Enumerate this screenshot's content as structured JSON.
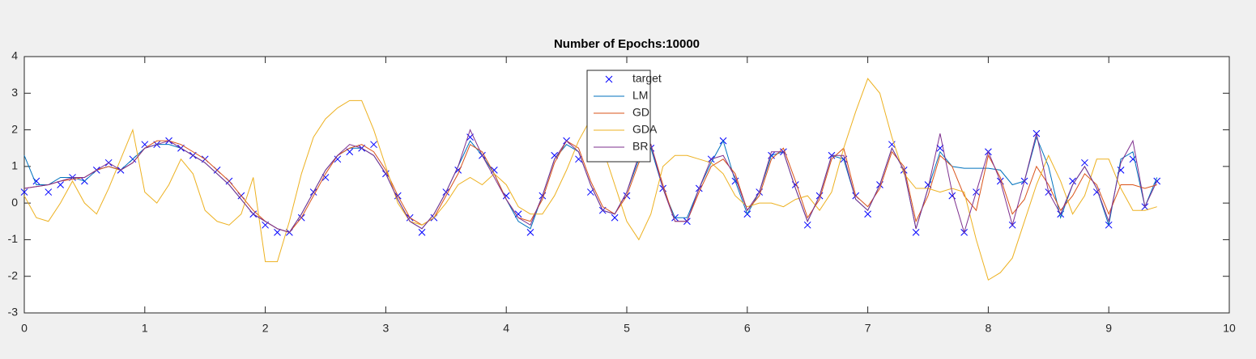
{
  "chart_data": {
    "type": "line",
    "title": "Number of Epochs:10000",
    "x": [
      0,
      0.1,
      0.2,
      0.3,
      0.4,
      0.5,
      0.6,
      0.7,
      0.8,
      0.9,
      1,
      1.1,
      1.2,
      1.3,
      1.4,
      1.5,
      1.6,
      1.7,
      1.8,
      1.9,
      2,
      2.1,
      2.2,
      2.3,
      2.4,
      2.5,
      2.6,
      2.7,
      2.8,
      2.9,
      3,
      3.1,
      3.2,
      3.3,
      3.4,
      3.5,
      3.6,
      3.7,
      3.8,
      3.9,
      4,
      4.1,
      4.2,
      4.3,
      4.4,
      4.5,
      4.6,
      4.7,
      4.8,
      4.9,
      5,
      5.1,
      5.2,
      5.3,
      5.4,
      5.5,
      5.6,
      5.7,
      5.8,
      5.9,
      6,
      6.1,
      6.2,
      6.3,
      6.4,
      6.5,
      6.6,
      6.7,
      6.8,
      6.9,
      7,
      7.1,
      7.2,
      7.3,
      7.4,
      7.5,
      7.6,
      7.7,
      7.8,
      7.9,
      8,
      8.1,
      8.2,
      8.3,
      8.4,
      8.5,
      8.6,
      8.7,
      8.8,
      8.9,
      9,
      9.1,
      9.2,
      9.3,
      9.4
    ],
    "series": [
      {
        "name": "target",
        "color": "#0000ff",
        "marker": "x",
        "values": [
          0.3,
          0.6,
          0.3,
          0.5,
          0.7,
          0.6,
          0.9,
          1.1,
          0.9,
          1.2,
          1.6,
          1.6,
          1.7,
          1.5,
          1.3,
          1.2,
          0.9,
          0.6,
          0.2,
          -0.3,
          -0.6,
          -0.8,
          -0.8,
          -0.4,
          0.3,
          0.7,
          1.2,
          1.4,
          1.5,
          1.6,
          0.8,
          0.2,
          -0.4,
          -0.8,
          -0.4,
          0.3,
          0.9,
          1.8,
          1.3,
          0.9,
          0.2,
          -0.3,
          -0.8,
          0.2,
          1.3,
          1.7,
          1.2,
          0.3,
          -0.2,
          -0.4,
          0.2,
          1.3,
          1.5,
          0.4,
          -0.4,
          -0.5,
          0.4,
          1.2,
          1.7,
          0.6,
          -0.3,
          0.3,
          1.3,
          1.4,
          0.5,
          -0.6,
          0.2,
          1.3,
          1.2,
          0.2,
          -0.3,
          0.5,
          1.6,
          0.9,
          -0.8,
          0.5,
          1.5,
          0.2,
          -0.8,
          0.3,
          1.4,
          0.6,
          -0.6,
          0.6,
          1.9,
          0.3,
          -0.3,
          0.6,
          1.1,
          0.3,
          -0.6,
          0.9,
          1.2,
          -0.1,
          0.6
        ]
      },
      {
        "name": "LM",
        "color": "#0072bd",
        "values": [
          1.3,
          0.5,
          0.5,
          0.7,
          0.7,
          0.6,
          0.9,
          1.0,
          0.9,
          1.2,
          1.5,
          1.6,
          1.6,
          1.5,
          1.3,
          1.1,
          0.8,
          0.5,
          0.1,
          -0.3,
          -0.5,
          -0.7,
          -0.8,
          -0.3,
          0.3,
          0.9,
          1.3,
          1.5,
          1.5,
          1.3,
          0.8,
          0.1,
          -0.5,
          -0.7,
          -0.3,
          0.3,
          1.0,
          1.7,
          1.3,
          0.8,
          0.1,
          -0.5,
          -0.7,
          0.2,
          1.2,
          1.6,
          1.4,
          0.5,
          -0.2,
          -0.3,
          0.3,
          1.2,
          1.5,
          0.4,
          -0.4,
          -0.4,
          0.4,
          1.1,
          1.7,
          0.6,
          -0.3,
          0.3,
          1.3,
          1.4,
          0.4,
          -0.5,
          0.2,
          1.3,
          1.2,
          0.1,
          -0.2,
          0.5,
          1.5,
          0.9,
          -0.7,
          0.4,
          1.4,
          1.0,
          0.95,
          0.95,
          0.95,
          0.9,
          0.5,
          0.6,
          1.8,
          1.0,
          -0.4,
          0.5,
          1.0,
          0.4,
          -0.6,
          1.2,
          1.4,
          -0.1,
          0.7
        ]
      },
      {
        "name": "GD",
        "color": "#d95319",
        "values": [
          0.4,
          0.45,
          0.5,
          0.6,
          0.65,
          0.7,
          0.9,
          1.0,
          0.9,
          1.1,
          1.5,
          1.7,
          1.7,
          1.6,
          1.4,
          1.2,
          0.9,
          0.6,
          0.2,
          -0.2,
          -0.5,
          -0.7,
          -0.8,
          -0.4,
          0.2,
          0.8,
          1.3,
          1.5,
          1.6,
          1.4,
          0.9,
          0.2,
          -0.4,
          -0.6,
          -0.4,
          0.2,
          0.8,
          1.6,
          1.4,
          0.8,
          0.1,
          -0.4,
          -0.5,
          0.1,
          1.1,
          1.7,
          1.5,
          0.6,
          -0.1,
          -0.3,
          0.2,
          1.1,
          1.6,
          0.5,
          -0.5,
          -0.5,
          0.3,
          1.0,
          1.2,
          0.8,
          -0.2,
          0.2,
          1.2,
          1.5,
          0.6,
          -0.4,
          0.1,
          1.2,
          1.5,
          0.2,
          -0.1,
          0.4,
          1.4,
          1.0,
          -0.5,
          0.2,
          1.3,
          1.0,
          0.2,
          -0.2,
          1.3,
          0.7,
          -0.3,
          0.1,
          1.0,
          0.5,
          -0.2,
          0.2,
          0.8,
          0.5,
          -0.3,
          0.5,
          0.5,
          0.4,
          0.5
        ]
      },
      {
        "name": "GDA",
        "color": "#edb120",
        "values": [
          0.2,
          -0.4,
          -0.5,
          0.0,
          0.6,
          0.0,
          -0.3,
          0.4,
          1.2,
          2.0,
          0.3,
          0.0,
          0.5,
          1.2,
          0.8,
          -0.2,
          -0.5,
          -0.6,
          -0.3,
          0.7,
          -1.6,
          -1.6,
          -0.5,
          0.8,
          1.8,
          2.3,
          2.6,
          2.8,
          2.8,
          2.0,
          1.0,
          0.0,
          -0.5,
          -0.6,
          -0.4,
          0.0,
          0.5,
          0.7,
          0.5,
          0.8,
          0.5,
          -0.1,
          -0.3,
          -0.3,
          0.2,
          0.9,
          1.7,
          2.3,
          1.5,
          0.5,
          -0.5,
          -1.0,
          -0.3,
          1.0,
          1.3,
          1.3,
          1.2,
          1.1,
          0.8,
          0.2,
          -0.1,
          0.0,
          0.0,
          -0.1,
          0.1,
          0.2,
          -0.2,
          0.3,
          1.5,
          2.5,
          3.4,
          3.0,
          1.8,
          0.8,
          0.4,
          0.4,
          0.3,
          0.4,
          0.3,
          -1.0,
          -2.1,
          -1.9,
          -1.5,
          -0.5,
          0.5,
          1.3,
          0.6,
          -0.3,
          0.2,
          1.2,
          1.2,
          0.4,
          -0.2,
          -0.2,
          -0.1
        ]
      },
      {
        "name": "BR",
        "color": "#7e2f8e",
        "values": [
          0.4,
          0.45,
          0.5,
          0.6,
          0.7,
          0.7,
          0.9,
          1.1,
          0.9,
          1.1,
          1.5,
          1.6,
          1.7,
          1.5,
          1.3,
          1.1,
          0.8,
          0.5,
          0.1,
          -0.3,
          -0.5,
          -0.7,
          -0.8,
          -0.3,
          0.3,
          0.9,
          1.3,
          1.6,
          1.5,
          1.3,
          0.8,
          0.1,
          -0.5,
          -0.7,
          -0.3,
          0.3,
          1.0,
          2.0,
          1.3,
          0.7,
          0.1,
          -0.4,
          -0.6,
          0.2,
          1.2,
          1.7,
          1.4,
          0.5,
          -0.2,
          -0.3,
          0.3,
          1.3,
          1.6,
          0.4,
          -0.5,
          -0.5,
          0.4,
          1.2,
          1.3,
          0.7,
          -0.2,
          0.3,
          1.4,
          1.4,
          0.4,
          -0.5,
          0.2,
          1.3,
          1.3,
          0.1,
          -0.2,
          0.5,
          1.5,
          0.9,
          -0.7,
          0.4,
          1.9,
          0.3,
          -0.8,
          0.3,
          1.4,
          0.6,
          -0.6,
          0.6,
          1.9,
          0.3,
          -0.3,
          0.5,
          1.0,
          0.4,
          -0.5,
          1.1,
          1.7,
          -0.1,
          0.6
        ]
      }
    ],
    "xlim": [
      0,
      10
    ],
    "xticks": [
      0,
      1,
      2,
      3,
      4,
      5,
      6,
      7,
      8,
      9,
      10
    ],
    "ylim": [
      -3,
      4
    ],
    "yticks": [
      -3,
      -2,
      -1,
      0,
      1,
      2,
      3,
      4
    ],
    "grid": false,
    "legend": "north"
  }
}
